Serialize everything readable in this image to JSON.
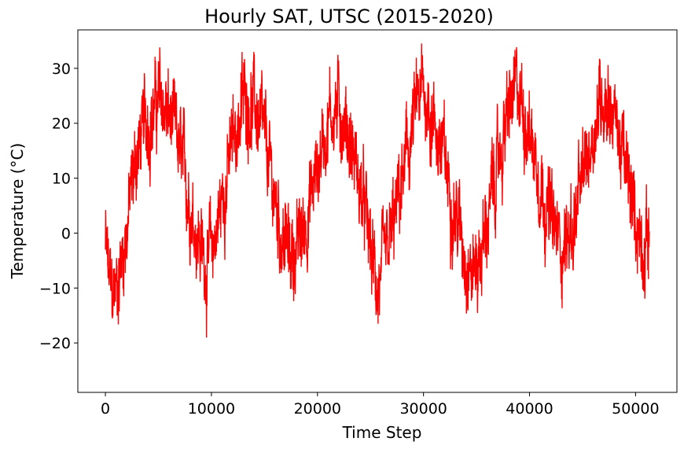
{
  "chart_data": {
    "type": "line",
    "title": "Hourly SAT, UTSC (2015-2020)",
    "xlabel": "Time Step",
    "ylabel": "Temperature (°C)",
    "xlim": [
      -2600,
      53900
    ],
    "ylim": [
      -29,
      37
    ],
    "xticks": [
      0,
      10000,
      20000,
      30000,
      40000,
      50000
    ],
    "xtick_labels": [
      "0",
      "10000",
      "20000",
      "30000",
      "40000",
      "50000"
    ],
    "yticks": [
      -20,
      -10,
      0,
      10,
      20,
      30
    ],
    "ytick_labels": [
      "−20",
      "−10",
      "0",
      "10",
      "20",
      "30"
    ],
    "grid": false,
    "color": "#ff0000",
    "series": [
      {
        "x": [
          0,
          300,
          600,
          1000,
          1400,
          1800,
          2200,
          2600,
          3000,
          3500,
          4000,
          4500,
          5000,
          5500,
          6000,
          6500,
          7000,
          7500,
          8000,
          8500,
          9000,
          9600,
          10200,
          10800,
          11400,
          12000,
          12600,
          13200,
          13800,
          14400,
          15000,
          15600,
          16200,
          16800,
          17400,
          18000,
          18600,
          19200,
          19800,
          20400,
          21000,
          21600,
          22200,
          22800,
          23400,
          24000,
          24600,
          25200,
          25700,
          26200,
          26800,
          27400,
          28000,
          28600,
          29200,
          29800,
          30400,
          31000,
          31600,
          32200,
          32800,
          33400,
          34000,
          34600,
          35200,
          35800,
          36400,
          37000,
          37600,
          38200,
          38800,
          39400,
          40000,
          40600,
          41200,
          41800,
          42400,
          43000,
          43600,
          44200,
          44800,
          45400,
          46000,
          46600,
          47200,
          47800,
          48400,
          49000,
          49600,
          50200,
          50800,
          51300
        ],
        "y": [
          -2,
          -8,
          -12,
          -10,
          -6,
          -2,
          4,
          10,
          15,
          18,
          21,
          22,
          24,
          23,
          21,
          18,
          14,
          10,
          6,
          2,
          -2,
          -6,
          -2,
          4,
          10,
          16,
          21,
          25,
          24,
          21,
          16,
          10,
          4,
          -1,
          -4,
          -3,
          0,
          5,
          10,
          16,
          21,
          23,
          22,
          19,
          14,
          8,
          2,
          -6,
          -10,
          -8,
          -3,
          3,
          9,
          15,
          21,
          25,
          24,
          20,
          16,
          11,
          6,
          1,
          -3,
          -7,
          -5,
          0,
          6,
          12,
          18,
          23,
          25,
          23,
          19,
          14,
          9,
          4,
          0,
          -2,
          -1,
          2,
          7,
          13,
          19,
          24,
          26,
          23,
          18,
          12,
          6,
          1,
          -2,
          0
        ]
      }
    ]
  }
}
